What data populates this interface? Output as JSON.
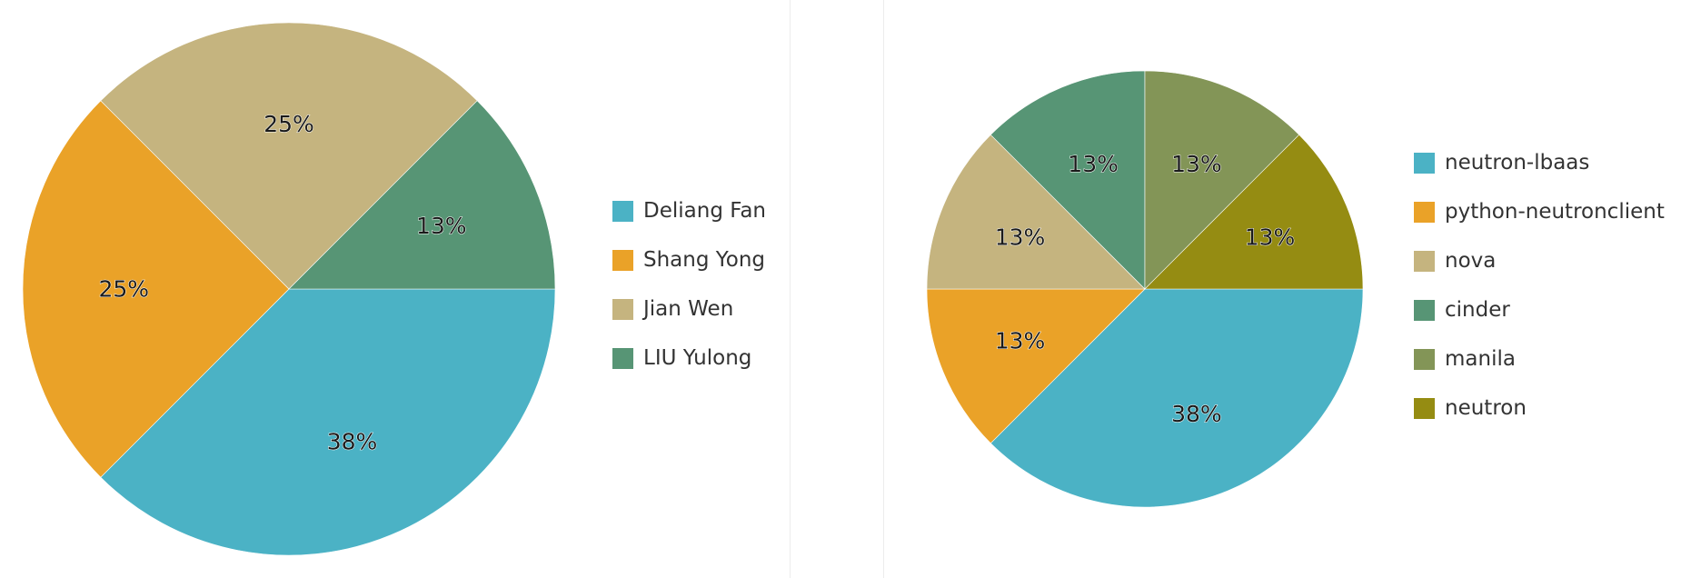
{
  "chart_data": [
    {
      "type": "pie",
      "title": "",
      "slices": [
        {
          "label": "Deliang Fan",
          "value": 3,
          "percent_label": "38%",
          "color": "#4bb2c5"
        },
        {
          "label": "Shang Yong",
          "value": 2,
          "percent_label": "25%",
          "color": "#eaa228"
        },
        {
          "label": "Jian Wen",
          "value": 2,
          "percent_label": "25%",
          "color": "#c5b47f"
        },
        {
          "label": "LIU Yulong",
          "value": 1,
          "percent_label": "13%",
          "color": "#579575"
        }
      ],
      "legend_position": "right"
    },
    {
      "type": "pie",
      "title": "",
      "slices": [
        {
          "label": "neutron-lbaas",
          "value": 3,
          "percent_label": "38%",
          "color": "#4bb2c5"
        },
        {
          "label": "python-neutronclient",
          "value": 1,
          "percent_label": "13%",
          "color": "#eaa228"
        },
        {
          "label": "nova",
          "value": 1,
          "percent_label": "13%",
          "color": "#c5b47f"
        },
        {
          "label": "cinder",
          "value": 1,
          "percent_label": "13%",
          "color": "#579575"
        },
        {
          "label": "manila",
          "value": 1,
          "percent_label": "13%",
          "color": "#839557"
        },
        {
          "label": "neutron",
          "value": 1,
          "percent_label": "13%",
          "color": "#958c12"
        }
      ],
      "legend_position": "right"
    }
  ]
}
